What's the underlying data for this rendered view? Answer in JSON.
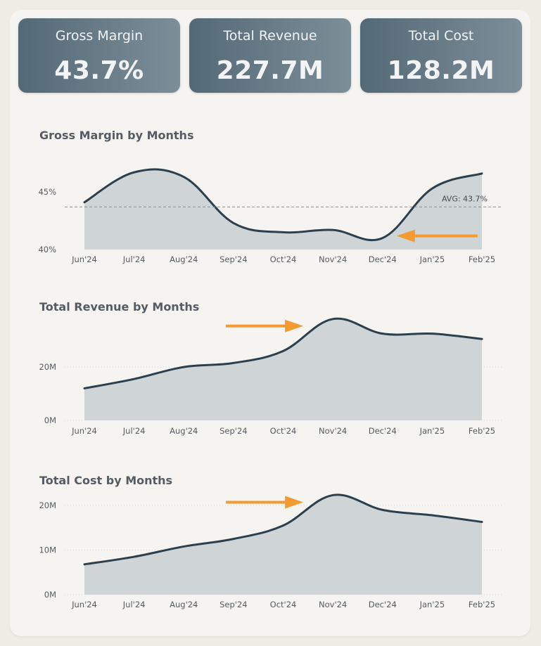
{
  "kpis": [
    {
      "title": "Gross Margin",
      "value": "43.7%"
    },
    {
      "title": "Total Revenue",
      "value": "227.7M"
    },
    {
      "title": "Total Cost",
      "value": "128.2M"
    }
  ],
  "colors": {
    "line": "#2b3f4d",
    "area": "#cfd4d7",
    "arrow": "#f39a33",
    "grid": "#d8d8d8",
    "avg": "#8a8f93"
  },
  "chart_data": [
    {
      "type": "area",
      "title": "Gross Margin by Months",
      "categories": [
        "Jun'24",
        "Jul'24",
        "Aug'24",
        "Sep'24",
        "Oct'24",
        "Nov'24",
        "Dec'24",
        "Jan'25",
        "Feb'25"
      ],
      "values": [
        44.1,
        46.7,
        46.3,
        42.3,
        41.5,
        41.7,
        41.0,
        45.3,
        46.6
      ],
      "ylim": [
        40,
        47.5
      ],
      "yticks": [
        {
          "v": 40,
          "label": "40%"
        },
        {
          "v": 45,
          "label": "45%"
        }
      ],
      "average": {
        "value": 43.7,
        "label": "AVG: 43.7%"
      },
      "grid": false,
      "annotations": [
        {
          "type": "arrow",
          "direction": "left",
          "pointing_at": "Dec'24"
        }
      ]
    },
    {
      "type": "area",
      "title": "Total Revenue by Months",
      "categories": [
        "Jun'24",
        "Jul'24",
        "Aug'24",
        "Sep'24",
        "Oct'24",
        "Nov'24",
        "Dec'24",
        "Jan'25",
        "Feb'25"
      ],
      "values": [
        12.0,
        15.5,
        20.0,
        21.5,
        26.0,
        38.0,
        32.5,
        32.5,
        30.5
      ],
      "ylim": [
        0,
        39
      ],
      "yticks": [
        {
          "v": 0,
          "label": "0M"
        },
        {
          "v": 20,
          "label": "20M"
        }
      ],
      "grid": true,
      "annotations": [
        {
          "type": "arrow",
          "direction": "right",
          "pointing_at": "Nov'24"
        }
      ]
    },
    {
      "type": "area",
      "title": "Total Cost by Months",
      "categories": [
        "Jun'24",
        "Jul'24",
        "Aug'24",
        "Sep'24",
        "Oct'24",
        "Nov'24",
        "Dec'24",
        "Jan'25",
        "Feb'25"
      ],
      "values": [
        6.8,
        8.5,
        10.8,
        12.5,
        15.5,
        22.3,
        19.0,
        17.8,
        16.3
      ],
      "ylim": [
        0,
        23
      ],
      "yticks": [
        {
          "v": 0,
          "label": "0M"
        },
        {
          "v": 10,
          "label": "10M"
        },
        {
          "v": 20,
          "label": "20M"
        }
      ],
      "grid": true,
      "annotations": [
        {
          "type": "arrow",
          "direction": "right",
          "pointing_at": "Nov'24"
        }
      ]
    }
  ]
}
